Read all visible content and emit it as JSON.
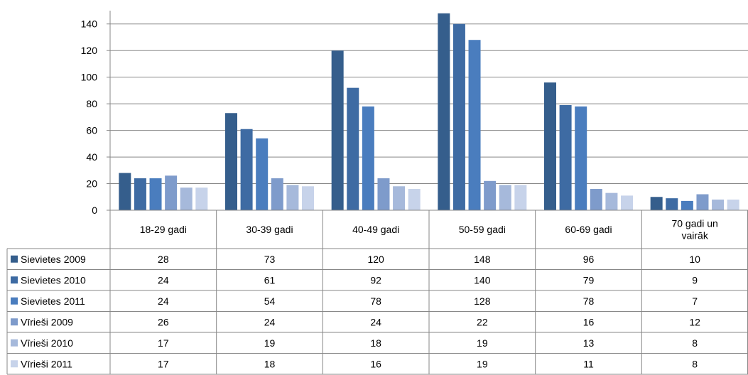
{
  "chart_data": {
    "type": "bar",
    "categories": [
      "18-29 gadi",
      "30-39 gadi",
      "40-49 gadi",
      "50-59 gadi",
      "60-69 gadi",
      "70 gadi un vairāk"
    ],
    "category_lines": [
      [
        "18-29 gadi"
      ],
      [
        "30-39 gadi"
      ],
      [
        "40-49 gadi"
      ],
      [
        "50-59 gadi"
      ],
      [
        "60-69 gadi"
      ],
      [
        "70 gadi un",
        "vairāk"
      ]
    ],
    "series": [
      {
        "name": "Sievietes 2009",
        "color": "#355E8C",
        "values": [
          28,
          73,
          120,
          148,
          96,
          10
        ]
      },
      {
        "name": "Sievietes 2010",
        "color": "#3E6BA3",
        "values": [
          24,
          61,
          92,
          140,
          79,
          9
        ]
      },
      {
        "name": "Sievietes 2011",
        "color": "#4A7DBE",
        "values": [
          24,
          54,
          78,
          128,
          78,
          7
        ]
      },
      {
        "name": "Vīrieši 2009",
        "color": "#7E9BCB",
        "values": [
          26,
          24,
          24,
          22,
          16,
          12
        ]
      },
      {
        "name": "Vīrieši 2010",
        "color": "#A6B9DB",
        "values": [
          17,
          19,
          18,
          19,
          13,
          8
        ]
      },
      {
        "name": "Vīrieši 2011",
        "color": "#C7D3EA",
        "values": [
          17,
          18,
          16,
          19,
          11,
          8
        ]
      }
    ],
    "y_ticks": [
      0,
      20,
      40,
      60,
      80,
      100,
      120,
      140
    ],
    "ylim": [
      0,
      150
    ],
    "grid": true,
    "legend": "data-table",
    "title": "",
    "xlabel": "",
    "ylabel": ""
  }
}
